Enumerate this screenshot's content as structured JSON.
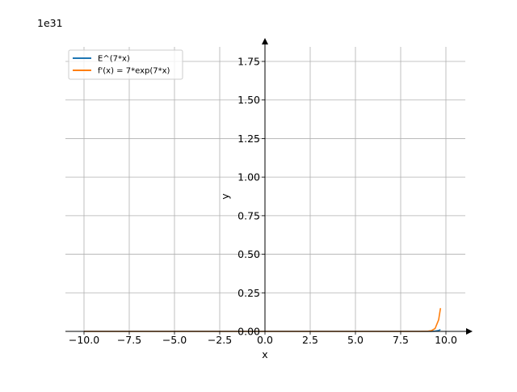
{
  "chart_data": {
    "type": "line",
    "title": "",
    "xlabel": "x",
    "ylabel": "y",
    "y_offset_label": "1e31",
    "xlim": [
      -11.0,
      11.5
    ],
    "ylim": [
      0,
      1.86
    ],
    "y_scale_factor": 1e+31,
    "grid": true,
    "legend_position": "top-left",
    "xticks": [
      -10.0,
      -7.5,
      -5.0,
      -2.5,
      0.0,
      2.5,
      5.0,
      7.5,
      10.0
    ],
    "xtick_labels": [
      "−10.0",
      "−7.5",
      "−5.0",
      "−2.5",
      "0.0",
      "2.5",
      "5.0",
      "7.5",
      "10.0"
    ],
    "yticks": [
      0.0,
      0.25,
      0.5,
      0.75,
      1.0,
      1.25,
      1.5,
      1.75
    ],
    "ytick_labels": [
      "0.00",
      "0.25",
      "0.50",
      "0.75",
      "1.00",
      "1.25",
      "1.50",
      "1.75"
    ],
    "series": [
      {
        "name": "E^(7*x)",
        "color": "#1f77b4",
        "x": [
          -10,
          -5,
          0,
          5,
          8.0,
          8.5,
          9.0,
          9.2,
          9.4,
          9.6,
          9.7
        ],
        "y": [
          0,
          0,
          0,
          0,
          0.0,
          0.0,
          0.0001,
          0.0004,
          0.0014,
          0.0056,
          0.0113
        ]
      },
      {
        "name": "f'(x) = 7*exp(7*x)",
        "color": "#ff7f0e",
        "x": [
          -10,
          -5,
          0,
          5,
          8.0,
          8.5,
          9.0,
          9.2,
          9.4,
          9.6,
          9.7
        ],
        "y": [
          0,
          0,
          0,
          0,
          0.0,
          0.0001,
          0.0011,
          0.0045,
          0.0185,
          0.075,
          0.151
        ]
      }
    ]
  }
}
